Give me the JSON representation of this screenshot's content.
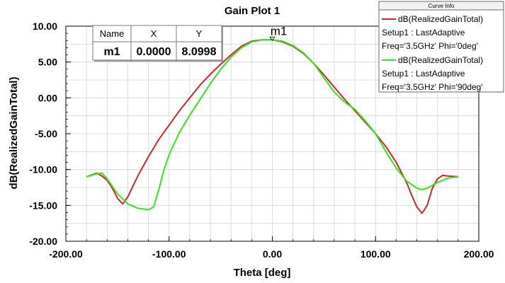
{
  "chart_data": {
    "type": "line",
    "title": "Gain Plot 1",
    "xlabel": "Theta [deg]",
    "ylabel": "dB(RealizedGainTotal)",
    "xlim": [
      -200,
      200
    ],
    "ylim": [
      -20,
      10
    ],
    "x_ticks": [
      "-200.00",
      "-100.00",
      "0.00",
      "100.00",
      "200.00"
    ],
    "y_ticks": [
      "10.00",
      "5.00",
      "0.00",
      "-5.00",
      "-10.00",
      "-15.00",
      "-20.00"
    ],
    "grid": true,
    "legend_position": "top-right",
    "legend_title": "Curve Info",
    "series": [
      {
        "line1": "dB(RealizedGainTotal)",
        "line2": "Setup1 : LastAdaptive",
        "line3": "Freq='3.5GHz' Phi='0deg'",
        "color": "#c8282d",
        "x": [
          -180,
          -170,
          -165,
          -160,
          -155,
          -150,
          -145,
          -140,
          -130,
          -120,
          -110,
          -100,
          -90,
          -80,
          -70,
          -60,
          -50,
          -40,
          -30,
          -20,
          -10,
          0,
          10,
          20,
          30,
          40,
          50,
          60,
          70,
          80,
          90,
          100,
          110,
          120,
          130,
          135,
          140,
          145,
          150,
          155,
          160,
          165,
          170,
          180
        ],
        "values": [
          -11.0,
          -10.5,
          -10.9,
          -11.5,
          -12.6,
          -14.0,
          -14.8,
          -13.8,
          -10.8,
          -8.2,
          -5.8,
          -3.8,
          -1.8,
          0.0,
          1.8,
          3.3,
          4.7,
          6.0,
          7.2,
          7.9,
          8.1,
          8.1,
          7.8,
          7.2,
          6.2,
          4.8,
          3.2,
          1.5,
          -0.2,
          -1.8,
          -3.4,
          -5.0,
          -6.8,
          -9.0,
          -11.8,
          -13.6,
          -15.2,
          -16.1,
          -15.0,
          -12.6,
          -11.3,
          -10.8,
          -10.9,
          -11.0
        ]
      },
      {
        "line1": "dB(RealizedGainTotal)",
        "line2": "Setup1 : LastAdaptive",
        "line3": "Freq='3.5GHz' Phi='90deg'",
        "color": "#33e61e",
        "x": [
          -180,
          -170,
          -165,
          -160,
          -150,
          -140,
          -130,
          -120,
          -115,
          -110,
          -105,
          -100,
          -90,
          -80,
          -70,
          -60,
          -50,
          -40,
          -30,
          -20,
          -10,
          0,
          10,
          20,
          30,
          40,
          50,
          60,
          70,
          80,
          90,
          100,
          110,
          120,
          130,
          140,
          145,
          150,
          160,
          170,
          180
        ],
        "values": [
          -11.0,
          -10.6,
          -10.5,
          -11.3,
          -13.4,
          -14.8,
          -15.4,
          -15.6,
          -15.2,
          -12.8,
          -10.0,
          -7.9,
          -4.8,
          -2.4,
          -0.2,
          2.0,
          4.0,
          5.7,
          7.0,
          7.8,
          8.1,
          8.1,
          7.9,
          7.3,
          6.3,
          4.8,
          2.8,
          0.8,
          -0.6,
          -1.6,
          -3.2,
          -5.0,
          -7.5,
          -9.8,
          -11.6,
          -12.6,
          -12.8,
          -12.6,
          -11.8,
          -11.2,
          -11.0
        ]
      }
    ],
    "marker": {
      "name": "m1",
      "x": 0,
      "y": 8.0998,
      "table_headers": [
        "Name",
        "X",
        "Y"
      ],
      "table_values": [
        "m1",
        "0.0000",
        "8.0998"
      ]
    }
  }
}
